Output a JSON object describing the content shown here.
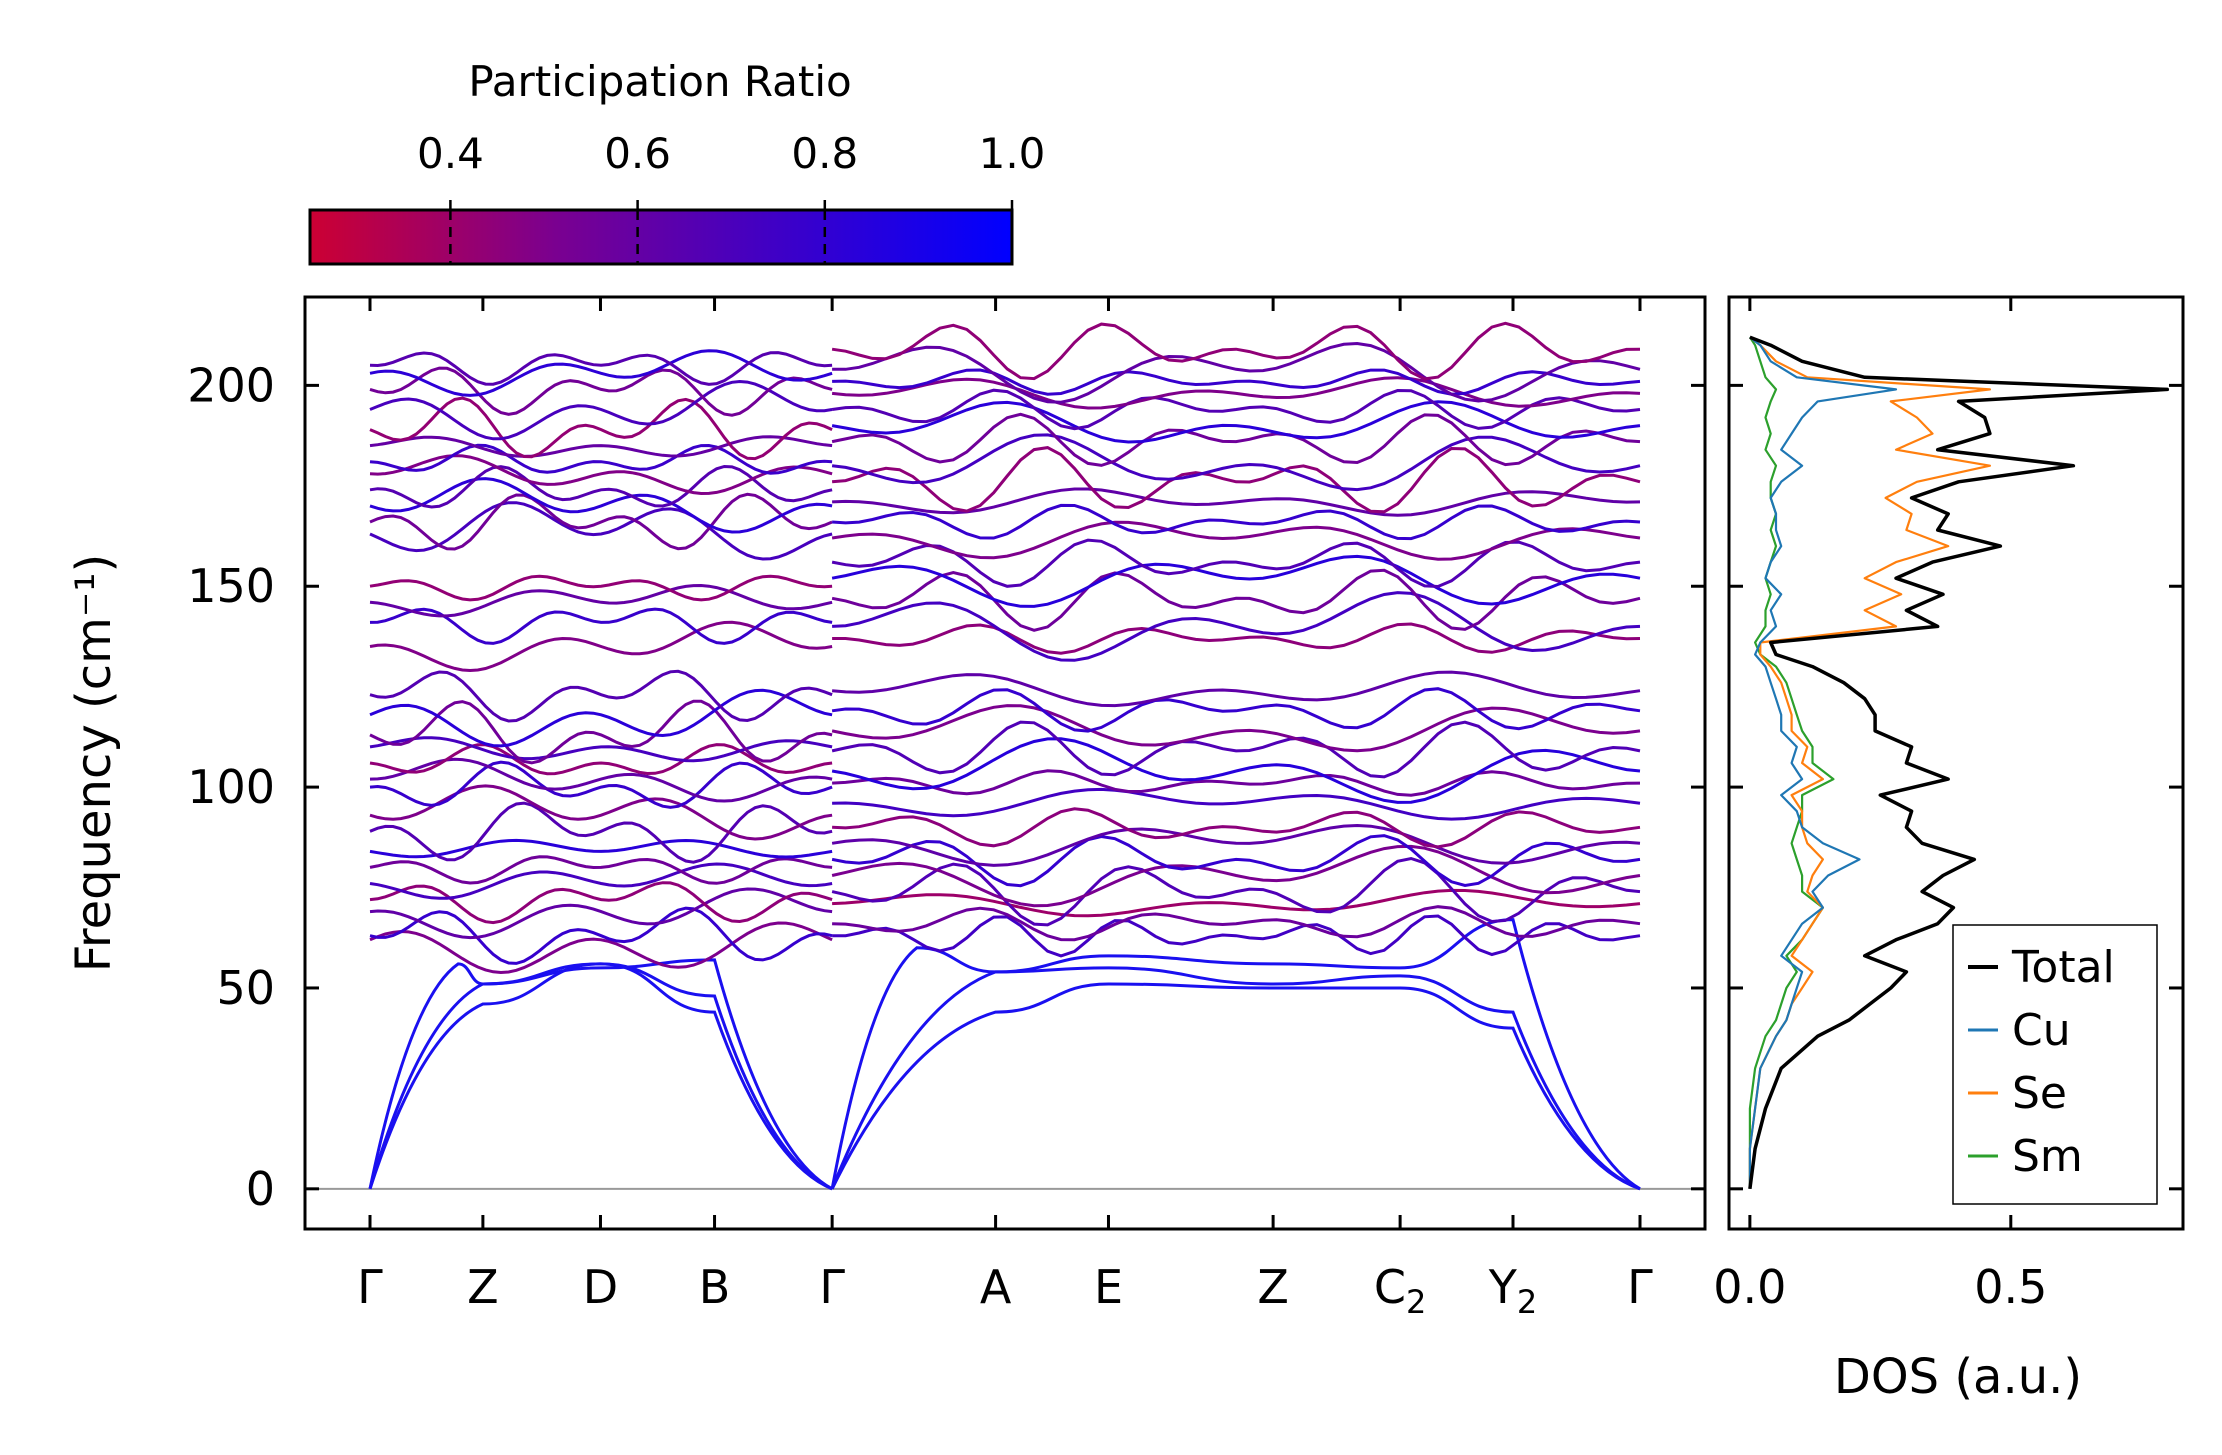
{
  "chart_data": [
    {
      "type": "colorbar",
      "title": "Participation Ratio",
      "range": [
        0.25,
        1.0
      ],
      "ticks": [
        0.4,
        0.6,
        0.8,
        1.0
      ],
      "tick_labels": [
        "0.4",
        "0.6",
        "0.8",
        "1.0"
      ],
      "cmap": [
        "#cc0033",
        "#0000ff"
      ]
    },
    {
      "type": "line",
      "title": "",
      "xlabel": "",
      "ylabel": "Frequency (cm⁻¹)",
      "ylim": [
        -10,
        222
      ],
      "yticks": [
        0,
        50,
        100,
        150,
        200
      ],
      "ytick_labels": [
        "0",
        "50",
        "100",
        "150",
        "200"
      ],
      "xlim": [
        0,
        10.8
      ],
      "kpoints": [
        {
          "label": "Γ",
          "x": 0.55
        },
        {
          "label": "Z",
          "x": 1.51
        },
        {
          "label": "D",
          "x": 2.51
        },
        {
          "label": "B",
          "x": 3.48
        },
        {
          "label": "Γ",
          "x": 4.48
        },
        {
          "label": "A",
          "x": 5.87
        },
        {
          "label": "E",
          "x": 6.83
        },
        {
          "label": "Z",
          "x": 8.23
        },
        {
          "label": "C₂",
          "x": 9.31
        },
        {
          "label": "Y₂",
          "x": 10.27
        },
        {
          "label": "Γ",
          "x": 11.35
        }
      ],
      "acoustic_branches": [
        {
          "x": [
            0.55,
            1.51,
            2.51,
            3.48,
            4.48
          ],
          "y": [
            0,
            46,
            56,
            44,
            0
          ]
        },
        {
          "x": [
            0.55,
            1.51,
            2.51,
            3.48,
            4.48
          ],
          "y": [
            0,
            51,
            56,
            48,
            0
          ]
        },
        {
          "x": [
            0.55,
            1.3,
            1.51,
            2.51,
            3.48,
            4.48
          ],
          "y": [
            0,
            56,
            51,
            55,
            57,
            0
          ]
        },
        {
          "x": [
            4.48,
            5.87,
            6.83,
            8.23,
            9.31,
            10.27,
            11.35
          ],
          "y": [
            0,
            44,
            51,
            50,
            50,
            40,
            0
          ]
        },
        {
          "x": [
            4.48,
            5.87,
            6.83,
            8.23,
            9.31,
            10.27,
            11.35
          ],
          "y": [
            0,
            54,
            55,
            51,
            53,
            44,
            0
          ]
        },
        {
          "x": [
            4.48,
            5.2,
            5.87,
            6.83,
            8.23,
            9.31,
            10.27,
            11.35
          ],
          "y": [
            0,
            60,
            54,
            58,
            56,
            55,
            67,
            0
          ]
        }
      ],
      "optical_bands_g_to_g": [
        62,
        63,
        69,
        72,
        76,
        80,
        84,
        89,
        93,
        100,
        102,
        106,
        110,
        113,
        118,
        123,
        135,
        141,
        146,
        150,
        163,
        166,
        170,
        174,
        178,
        181,
        185,
        189,
        194,
        199,
        203,
        205
      ],
      "optical_bands_g_to_g2": [
        63,
        66,
        71,
        74,
        78,
        82,
        86,
        90,
        96,
        101,
        104,
        109,
        114,
        119,
        124,
        137,
        140,
        147,
        152,
        156,
        162,
        166,
        171,
        176,
        180,
        186,
        190,
        194,
        198,
        201,
        204,
        209
      ]
    },
    {
      "type": "line",
      "title": "",
      "xlabel": "DOS (a.u.)",
      "ylabel": "",
      "xlim": [
        -0.04,
        0.83
      ],
      "ylim": [
        -10,
        222
      ],
      "xticks": [
        0.0,
        0.5
      ],
      "xtick_labels": [
        "0.0",
        "0.5"
      ],
      "legend_position": "lower-right",
      "series": [
        {
          "name": "Total",
          "color": "#000000",
          "y": [
            0,
            10,
            20,
            30,
            38,
            42,
            46,
            50,
            54,
            58,
            62,
            66,
            70,
            74,
            78,
            82,
            86,
            90,
            94,
            98,
            102,
            106,
            110,
            114,
            118,
            122,
            126,
            130,
            133,
            136,
            140,
            144,
            148,
            152,
            156,
            160,
            164,
            168,
            172,
            176,
            180,
            184,
            188,
            192,
            196,
            199,
            202,
            206,
            210,
            212
          ],
          "values": [
            0.0,
            0.01,
            0.03,
            0.06,
            0.13,
            0.19,
            0.23,
            0.27,
            0.3,
            0.22,
            0.28,
            0.36,
            0.39,
            0.33,
            0.37,
            0.43,
            0.33,
            0.3,
            0.31,
            0.25,
            0.38,
            0.3,
            0.31,
            0.24,
            0.24,
            0.22,
            0.18,
            0.12,
            0.05,
            0.04,
            0.36,
            0.3,
            0.37,
            0.28,
            0.35,
            0.48,
            0.36,
            0.38,
            0.31,
            0.4,
            0.62,
            0.36,
            0.46,
            0.45,
            0.4,
            0.8,
            0.22,
            0.1,
            0.04,
            0.0
          ]
        },
        {
          "name": "Cu",
          "color": "#1f77b4",
          "y": [
            0,
            10,
            20,
            30,
            38,
            42,
            46,
            50,
            54,
            58,
            62,
            66,
            70,
            74,
            78,
            82,
            86,
            90,
            94,
            98,
            102,
            106,
            110,
            114,
            118,
            122,
            126,
            130,
            133,
            136,
            140,
            144,
            148,
            152,
            156,
            160,
            164,
            168,
            172,
            176,
            180,
            184,
            188,
            192,
            196,
            199,
            202,
            206,
            210,
            212
          ],
          "values": [
            0.0,
            0.0,
            0.01,
            0.02,
            0.05,
            0.07,
            0.08,
            0.09,
            0.1,
            0.06,
            0.08,
            0.1,
            0.14,
            0.12,
            0.15,
            0.21,
            0.14,
            0.1,
            0.09,
            0.06,
            0.1,
            0.08,
            0.09,
            0.06,
            0.06,
            0.05,
            0.04,
            0.03,
            0.01,
            0.02,
            0.05,
            0.04,
            0.06,
            0.03,
            0.04,
            0.06,
            0.05,
            0.05,
            0.04,
            0.06,
            0.1,
            0.06,
            0.08,
            0.1,
            0.13,
            0.28,
            0.09,
            0.04,
            0.02,
            0.0
          ]
        },
        {
          "name": "Se",
          "color": "#ff7f0e",
          "y": [
            0,
            10,
            20,
            30,
            38,
            42,
            46,
            50,
            54,
            58,
            62,
            66,
            70,
            74,
            78,
            82,
            86,
            90,
            94,
            98,
            102,
            106,
            110,
            114,
            118,
            122,
            126,
            130,
            133,
            136,
            140,
            144,
            148,
            152,
            156,
            160,
            164,
            168,
            172,
            176,
            180,
            184,
            188,
            192,
            196,
            199,
            202,
            206,
            210,
            212
          ],
          "values": [
            0.0,
            0.0,
            0.01,
            0.02,
            0.05,
            0.07,
            0.08,
            0.1,
            0.12,
            0.08,
            0.1,
            0.12,
            0.14,
            0.11,
            0.12,
            0.14,
            0.11,
            0.1,
            0.1,
            0.08,
            0.14,
            0.1,
            0.11,
            0.08,
            0.08,
            0.07,
            0.06,
            0.04,
            0.02,
            0.02,
            0.28,
            0.22,
            0.29,
            0.22,
            0.28,
            0.38,
            0.3,
            0.31,
            0.26,
            0.32,
            0.46,
            0.28,
            0.35,
            0.32,
            0.27,
            0.46,
            0.11,
            0.05,
            0.02,
            0.0
          ]
        },
        {
          "name": "Sm",
          "color": "#2ca02c",
          "y": [
            0,
            10,
            20,
            30,
            38,
            42,
            46,
            50,
            54,
            58,
            62,
            66,
            70,
            74,
            78,
            82,
            86,
            90,
            94,
            98,
            102,
            106,
            110,
            114,
            118,
            122,
            126,
            130,
            133,
            136,
            140,
            144,
            148,
            152,
            156,
            160,
            164,
            168,
            172,
            176,
            180,
            184,
            188,
            192,
            196,
            199,
            202,
            206,
            210,
            212
          ],
          "values": [
            0.0,
            0.0,
            0.0,
            0.01,
            0.03,
            0.05,
            0.06,
            0.07,
            0.09,
            0.07,
            0.1,
            0.12,
            0.14,
            0.1,
            0.1,
            0.09,
            0.08,
            0.09,
            0.1,
            0.1,
            0.16,
            0.12,
            0.12,
            0.1,
            0.09,
            0.08,
            0.07,
            0.05,
            0.02,
            0.01,
            0.03,
            0.03,
            0.04,
            0.03,
            0.04,
            0.05,
            0.04,
            0.05,
            0.04,
            0.04,
            0.05,
            0.03,
            0.04,
            0.03,
            0.04,
            0.05,
            0.03,
            0.02,
            0.01,
            0.0
          ]
        }
      ]
    }
  ]
}
